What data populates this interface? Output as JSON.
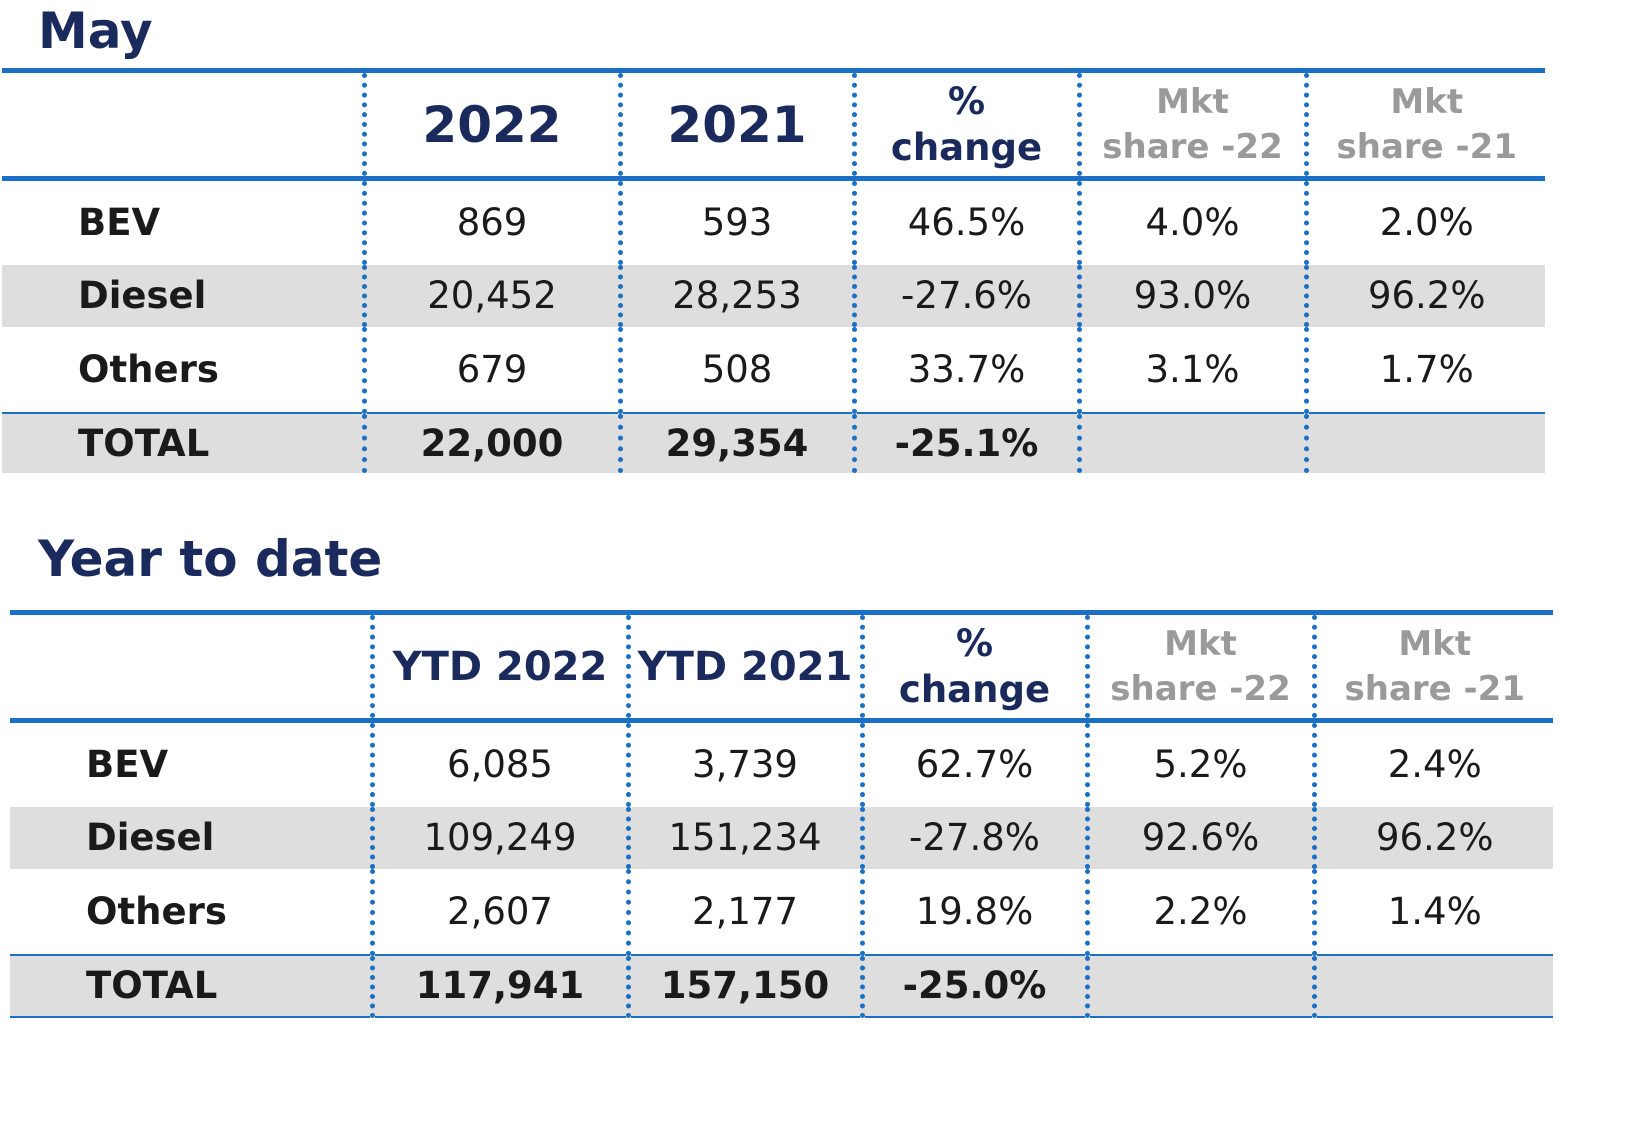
{
  "chart_data": [
    {
      "type": "table",
      "title": "May",
      "columns": [
        "",
        "2022",
        "2021",
        "% change",
        "Mkt share -22",
        "Mkt share -21"
      ],
      "rows": [
        {
          "label": "BEV",
          "y2022": "869",
          "y2021": "593",
          "pct_change": "46.5%",
          "mkt22": "4.0%",
          "mkt21": "2.0%"
        },
        {
          "label": "Diesel",
          "y2022": "20,452",
          "y2021": "28,253",
          "pct_change": "-27.6%",
          "mkt22": "93.0%",
          "mkt21": "96.2%"
        },
        {
          "label": "Others",
          "y2022": "679",
          "y2021": "508",
          "pct_change": "33.7%",
          "mkt22": "3.1%",
          "mkt21": "1.7%"
        },
        {
          "label": "TOTAL",
          "y2022": "22,000",
          "y2021": "29,354",
          "pct_change": "-25.1%",
          "mkt22": "",
          "mkt21": ""
        }
      ]
    },
    {
      "type": "table",
      "title": "Year to date",
      "columns": [
        "",
        "YTD 2022",
        "YTD 2021",
        "% change",
        "Mkt share -22",
        "Mkt share -21"
      ],
      "rows": [
        {
          "label": "BEV",
          "y2022": "6,085",
          "y2021": "3,739",
          "pct_change": "62.7%",
          "mkt22": "5.2%",
          "mkt21": "2.4%"
        },
        {
          "label": "Diesel",
          "y2022": "109,249",
          "y2021": "151,234",
          "pct_change": "-27.8%",
          "mkt22": "92.6%",
          "mkt21": "96.2%"
        },
        {
          "label": "Others",
          "y2022": "2,607",
          "y2021": "2,177",
          "pct_change": "19.8%",
          "mkt22": "2.2%",
          "mkt21": "1.4%"
        },
        {
          "label": "TOTAL",
          "y2022": "117,941",
          "y2021": "157,150",
          "pct_change": "-25.0%",
          "mkt22": "",
          "mkt21": ""
        }
      ]
    }
  ],
  "header_text": {
    "pct_line1": "%",
    "pct_line2": "change",
    "mkt_line1": "Mkt",
    "mkt22_line2": "share -22",
    "mkt21_line2": "share -21"
  },
  "colors": {
    "accent": "#1b6fc4",
    "title": "#1b2a5c",
    "shade": "#dedede",
    "muted_header": "#9a9a9a"
  }
}
